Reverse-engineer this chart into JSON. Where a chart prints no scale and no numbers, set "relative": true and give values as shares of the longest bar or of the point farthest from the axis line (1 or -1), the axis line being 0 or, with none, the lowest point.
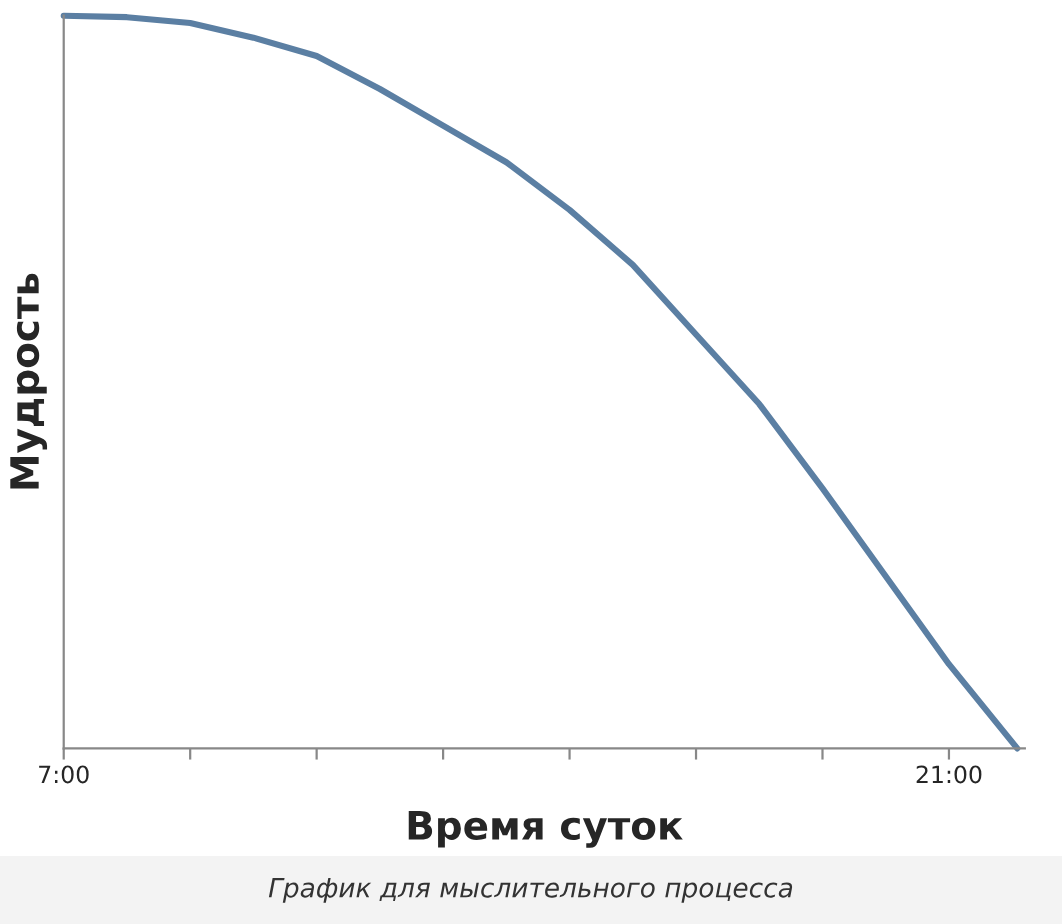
{
  "chart_data": {
    "type": "line",
    "relative": true,
    "xlabel": "Время суток",
    "ylabel": "Мудрость",
    "annotations": [
      "График для мыслительного процесса"
    ],
    "x": [
      7,
      8,
      9,
      10,
      11,
      12,
      13,
      14,
      15,
      16,
      17,
      18,
      19,
      20,
      21,
      22.08
    ],
    "series": [
      {
        "color": "#5b7fa3",
        "values": [
          1.0,
          0.998,
          0.99,
          0.97,
          0.945,
          0.9,
          0.85,
          0.8,
          0.735,
          0.66,
          0.565,
          0.47,
          0.355,
          0.235,
          0.115,
          0.0
        ]
      }
    ],
    "xlim": [
      7,
      22.2
    ],
    "xticks": [
      {
        "value": 7,
        "label": "7:00"
      },
      {
        "value": 9,
        "label": null
      },
      {
        "value": 11,
        "label": null
      },
      {
        "value": 13,
        "label": null
      },
      {
        "value": 15,
        "label": null
      },
      {
        "value": 17,
        "label": null
      },
      {
        "value": 19,
        "label": null
      },
      {
        "value": 21,
        "label": "21:00"
      }
    ],
    "grid": false,
    "legend": false,
    "marker": "none",
    "line_style": "solid"
  }
}
